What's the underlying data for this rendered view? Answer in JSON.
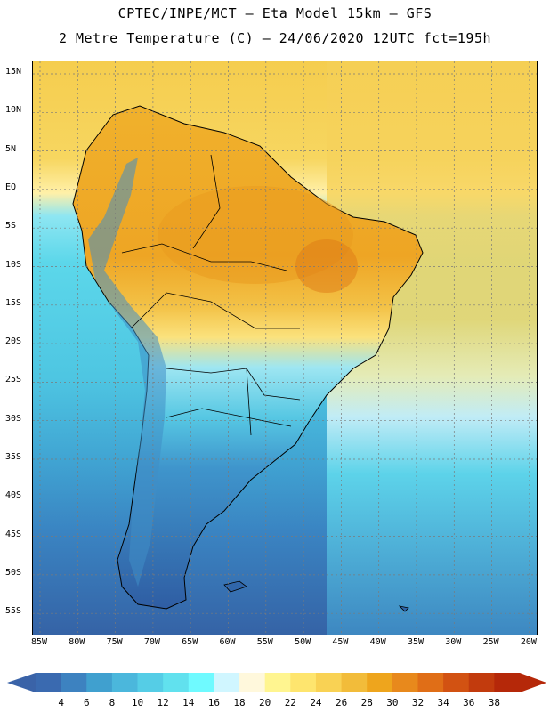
{
  "header": {
    "line1": "CPTEC/INPE/MCT –  Eta Model 15km – GFS",
    "line2": "2 Metre Temperature (C) – 24/06/2020 12UTC fct=195h"
  },
  "map": {
    "lat_labels": [
      "15N",
      "10N",
      "5N",
      "EQ",
      "5S",
      "10S",
      "15S",
      "20S",
      "25S",
      "30S",
      "35S",
      "40S",
      "45S",
      "50S",
      "55S"
    ],
    "lon_labels": [
      "85W",
      "80W",
      "75W",
      "70W",
      "65W",
      "60W",
      "55W",
      "50W",
      "45W",
      "40W",
      "35W",
      "30W",
      "25W",
      "20W"
    ]
  },
  "legend": {
    "labels": [
      "4",
      "6",
      "8",
      "10",
      "12",
      "14",
      "16",
      "18",
      "20",
      "22",
      "24",
      "26",
      "28",
      "30",
      "32",
      "34",
      "36",
      "38"
    ],
    "colors": [
      "#3a6ab0",
      "#3d82c0",
      "#40a0cf",
      "#4bb7dc",
      "#55cde6",
      "#61e1ee",
      "#6ffaff",
      "#d0f6ff",
      "#fff8dc",
      "#fff590",
      "#fee56e",
      "#f9d254",
      "#f2bc3a",
      "#eea51d",
      "#e8891c",
      "#e06e17",
      "#d25212",
      "#c23b0d",
      "#b52809"
    ],
    "underflow_color": "#3a63a8",
    "overflow_color": "#b52809"
  }
}
